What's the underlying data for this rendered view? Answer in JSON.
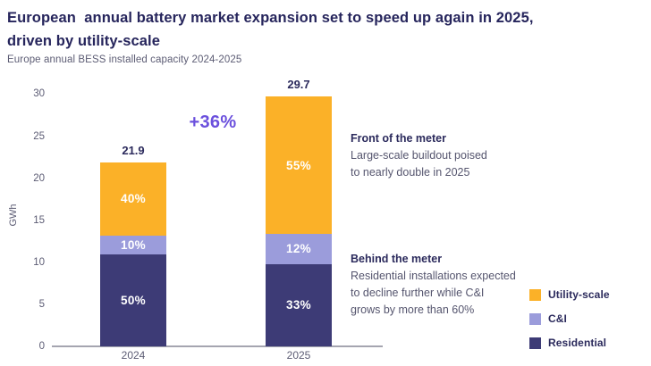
{
  "header": {
    "title": "European  annual battery market expansion set to speed up again in 2025,\ndriven by utility-scale",
    "subtitle": "Europe annual BESS installed capacity 2024-2025"
  },
  "chart_data": {
    "type": "bar",
    "stacked": true,
    "title": "Europe annual BESS installed capacity 2024-2025",
    "xlabel": "",
    "ylabel": "GWh",
    "ylim": [
      0,
      30
    ],
    "yticks": [
      0,
      5,
      10,
      15,
      20,
      25,
      30
    ],
    "grid": false,
    "legend_position": "right",
    "categories": [
      "2024",
      "2025"
    ],
    "totals": [
      21.9,
      29.7
    ],
    "total_labels": [
      "21.9",
      "29.7"
    ],
    "growth_label": "+36%",
    "series": [
      {
        "name": "Utility-scale",
        "color": "#fbb128",
        "pct": [
          40,
          55
        ],
        "labels": [
          "40%",
          "55%"
        ]
      },
      {
        "name": "C&I",
        "color": "#9b9cdb",
        "pct": [
          10,
          12
        ],
        "labels": [
          "10%",
          "12%"
        ]
      },
      {
        "name": "Residential",
        "color": "#3d3b76",
        "pct": [
          50,
          33
        ],
        "labels": [
          "50%",
          "33%"
        ]
      }
    ]
  },
  "annotations": {
    "front": {
      "heading": "Front of the meter",
      "body_lines": [
        "Large-scale buildout poised",
        "to nearly double in 2025"
      ]
    },
    "behind": {
      "heading": "Behind the meter",
      "body_lines": [
        "Residential installations expected",
        "to decline further while C&I",
        "grows by more than 60%"
      ]
    }
  },
  "legend": [
    {
      "label": "Utility-scale",
      "color": "#fbb128"
    },
    {
      "label": "C&I",
      "color": "#9b9cdb"
    },
    {
      "label": "Residential",
      "color": "#3d3b76"
    }
  ],
  "colors": {
    "title": "#26255c",
    "axis_text": "#5c5c74",
    "axis_line": "#a5a5b0",
    "growth": "#6b50dd",
    "segment_label": "#ffffff"
  }
}
